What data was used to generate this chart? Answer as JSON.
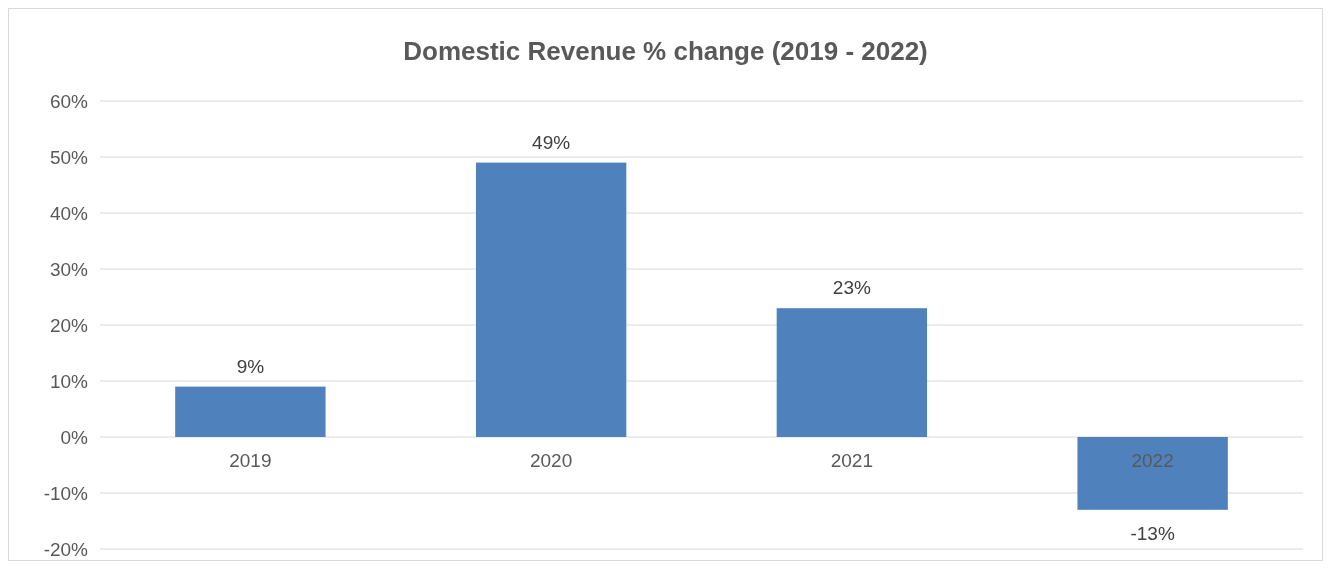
{
  "chart_data": {
    "type": "bar",
    "title": "Domestic Revenue % change (2019 - 2022)",
    "categories": [
      "2019",
      "2020",
      "2021",
      "2022"
    ],
    "values": [
      9,
      49,
      23,
      -13
    ],
    "value_labels": [
      "9%",
      "49%",
      "23%",
      "-13%"
    ],
    "color": "#4f81bd",
    "ylim": [
      -20,
      60
    ],
    "yticks": [
      {
        "value": -20,
        "label": "-20%"
      },
      {
        "value": -10,
        "label": "-10%"
      },
      {
        "value": 0,
        "label": "0%"
      },
      {
        "value": 10,
        "label": "10%"
      },
      {
        "value": 20,
        "label": "20%"
      },
      {
        "value": 30,
        "label": "30%"
      },
      {
        "value": 40,
        "label": "40%"
      },
      {
        "value": 50,
        "label": "50%"
      },
      {
        "value": 60,
        "label": "60%"
      }
    ],
    "grid": "y"
  }
}
